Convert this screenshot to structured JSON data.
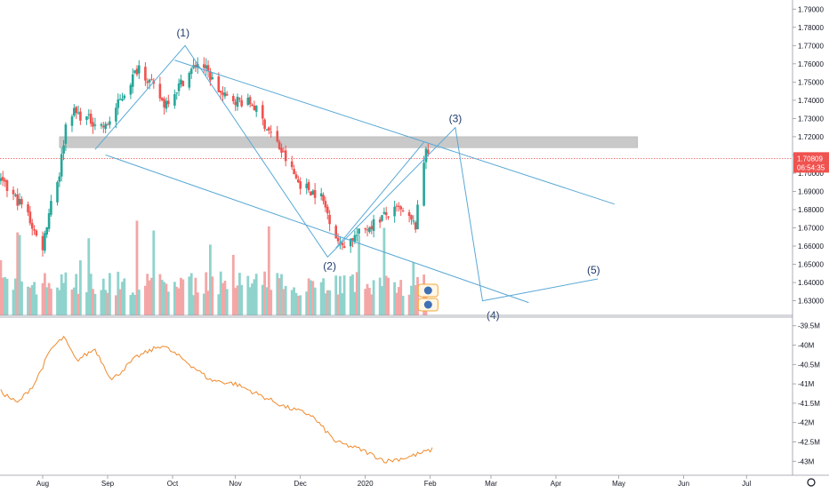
{
  "chart_data": {
    "type": "candlestick",
    "symbol": "",
    "timeframe": "1D",
    "price_axis": {
      "min": 1.622,
      "max": 1.795,
      "tick_labels": [
        "1.79000",
        "1.78000",
        "1.77000",
        "1.76000",
        "1.75000",
        "1.74000",
        "1.73000",
        "1.72000",
        "1.71000",
        "1.70000",
        "1.69000",
        "1.68000",
        "1.67000",
        "1.66000",
        "1.65000",
        "1.64000",
        "1.63000"
      ],
      "tick_values": [
        1.79,
        1.78,
        1.77,
        1.76,
        1.75,
        1.74,
        1.73,
        1.72,
        1.71,
        1.7,
        1.69,
        1.68,
        1.67,
        1.66,
        1.65,
        1.64,
        1.63
      ]
    },
    "last_price": {
      "value": 1.70809,
      "label": "1.70809",
      "countdown": "06:54:35",
      "color": "#ef5350"
    },
    "indicator_axis": {
      "min": -43.2,
      "max": -39.3,
      "tick_labels": [
        "-39.5M",
        "-40M",
        "-40.5M",
        "-41M",
        "-41.5M",
        "-42M",
        "-42.5M",
        "-43M"
      ],
      "tick_values": [
        -39.5,
        -40,
        -40.5,
        -41,
        -41.5,
        -42,
        -42.5,
        -43
      ]
    },
    "time_axis": {
      "labels": [
        "Aug",
        "Sep",
        "Oct",
        "Nov",
        "Dec",
        "2020",
        "Feb",
        "Mar",
        "Apr",
        "May",
        "Jun",
        "Jul"
      ],
      "day_index": [
        0,
        31,
        62,
        92,
        123,
        154,
        185,
        214,
        245,
        275,
        306,
        336
      ]
    },
    "anchors": [
      {
        "day": 0,
        "price": 1.715
      },
      {
        "day": 12,
        "price": 1.735
      },
      {
        "day": 30,
        "price": 1.725
      },
      {
        "day": 46,
        "price": 1.759
      },
      {
        "day": 58,
        "price": 1.738
      },
      {
        "day": 75,
        "price": 1.762
      },
      {
        "day": 86,
        "price": 1.742
      },
      {
        "day": 100,
        "price": 1.738
      },
      {
        "day": 112,
        "price": 1.716
      },
      {
        "day": 122,
        "price": 1.695
      },
      {
        "day": 133,
        "price": 1.687
      },
      {
        "day": 142,
        "price": 1.66
      },
      {
        "day": 150,
        "price": 1.666
      },
      {
        "day": 162,
        "price": 1.676
      },
      {
        "day": 170,
        "price": 1.68
      },
      {
        "day": 178,
        "price": 1.671
      },
      {
        "day": 183,
        "price": 1.715
      },
      {
        "day": 186,
        "price": 1.708
      }
    ],
    "pre_window": [
      {
        "day": -20,
        "price": 1.695
      },
      {
        "day": -8,
        "price": 1.68
      },
      {
        "day": -3,
        "price": 1.665
      },
      {
        "day": 0,
        "price": 1.66
      },
      {
        "day": 4,
        "price": 1.685
      },
      {
        "day": 8,
        "price": 1.7
      },
      {
        "day": 12,
        "price": 1.735
      }
    ],
    "indicator_anchors": [
      {
        "day": -20,
        "value": -41.2
      },
      {
        "day": -12,
        "value": -41.5
      },
      {
        "day": -4,
        "value": -41.0
      },
      {
        "day": 4,
        "value": -40.1
      },
      {
        "day": 10,
        "value": -39.8
      },
      {
        "day": 16,
        "value": -40.4
      },
      {
        "day": 25,
        "value": -40.1
      },
      {
        "day": 33,
        "value": -40.9
      },
      {
        "day": 45,
        "value": -40.3
      },
      {
        "day": 57,
        "value": -40.0
      },
      {
        "day": 68,
        "value": -40.4
      },
      {
        "day": 80,
        "value": -40.9
      },
      {
        "day": 92,
        "value": -41.0
      },
      {
        "day": 104,
        "value": -41.3
      },
      {
        "day": 116,
        "value": -41.6
      },
      {
        "day": 128,
        "value": -41.8
      },
      {
        "day": 140,
        "value": -42.5
      },
      {
        "day": 152,
        "value": -42.7
      },
      {
        "day": 164,
        "value": -43.0
      },
      {
        "day": 174,
        "value": -42.9
      },
      {
        "day": 186,
        "value": -42.7
      }
    ],
    "wave_labels": [
      {
        "text": "(1)",
        "day": 67,
        "price": 1.775
      },
      {
        "text": "(2)",
        "day": 137,
        "price": 1.647
      },
      {
        "text": "(3)",
        "day": 197,
        "price": 1.728
      },
      {
        "text": "(4)",
        "day": 215,
        "price": 1.62
      },
      {
        "text": "(5)",
        "day": 263,
        "price": 1.645
      }
    ],
    "drawings": {
      "wave_path": [
        {
          "day": 25,
          "price": 1.713
        },
        {
          "day": 68,
          "price": 1.77
        },
        {
          "day": 136,
          "price": 1.654
        },
        {
          "day": 197,
          "price": 1.725
        },
        {
          "day": 210,
          "price": 1.63
        },
        {
          "day": 265,
          "price": 1.642
        }
      ],
      "channel_upper": [
        {
          "day": 63,
          "price": 1.762
        },
        {
          "day": 273,
          "price": 1.683
        }
      ],
      "channel_lower": [
        {
          "day": 30,
          "price": 1.71
        },
        {
          "day": 232,
          "price": 1.629
        }
      ],
      "channel_segment": [
        {
          "day": 140,
          "price": 1.659
        },
        {
          "day": 182,
          "price": 1.717
        }
      ],
      "resistance_zone": {
        "day_from": 8,
        "day_to": 284,
        "price_high": 1.72,
        "price_low": 1.714
      },
      "line_color": "#5aa9d6",
      "zone_color": "#c0c0c0"
    },
    "colors": {
      "up": "#26a69a",
      "down": "#ef5350",
      "volume_up": "#8fd3cc",
      "volume_down": "#f4a6a6",
      "indicator": "#f08a2c"
    },
    "grid": false
  }
}
